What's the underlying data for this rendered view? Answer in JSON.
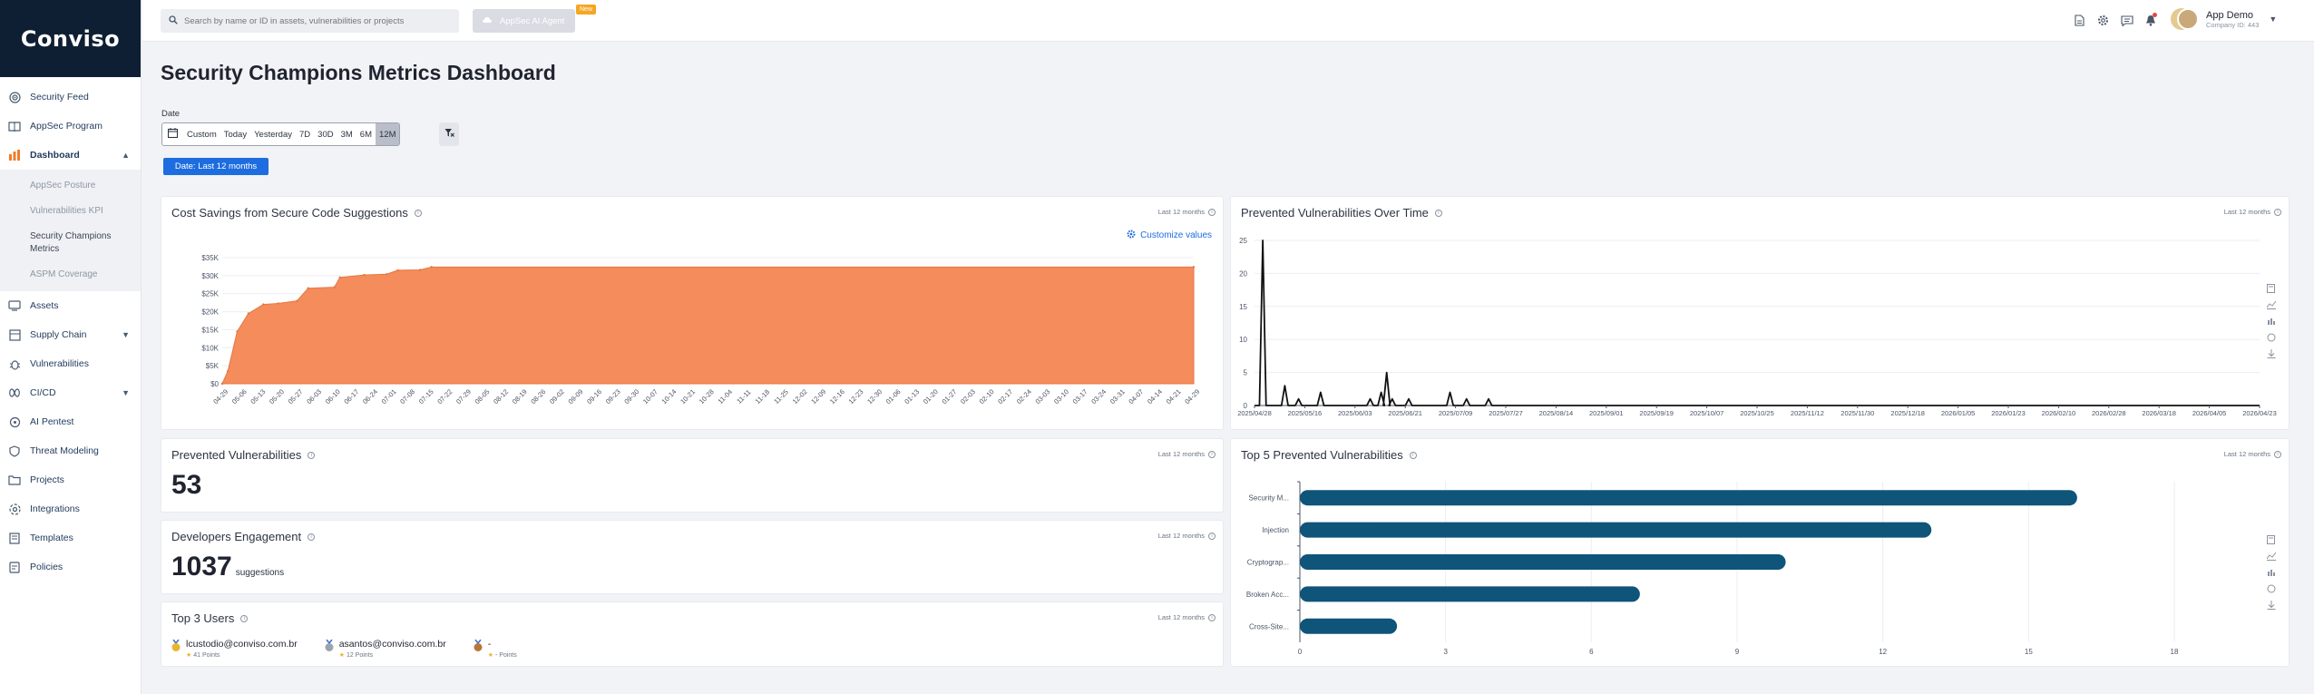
{
  "brand": {
    "logo_text": "Conviso"
  },
  "sidebar": {
    "items": [
      {
        "label": "Security Feed",
        "icon": "radar-icon"
      },
      {
        "label": "AppSec Program",
        "icon": "book-icon"
      },
      {
        "label": "Dashboard",
        "icon": "bar-chart-icon",
        "active": true,
        "expanded": true
      },
      {
        "label": "Assets",
        "icon": "assets-icon"
      },
      {
        "label": "Supply Chain",
        "icon": "supply-chain-icon",
        "expandable": true
      },
      {
        "label": "Vulnerabilities",
        "icon": "bug-icon"
      },
      {
        "label": "CI/CD",
        "icon": "cicd-icon",
        "expandable": true
      },
      {
        "label": "AI Pentest",
        "icon": "ai-icon"
      },
      {
        "label": "Threat Modeling",
        "icon": "shield-icon"
      },
      {
        "label": "Projects",
        "icon": "folder-icon"
      },
      {
        "label": "Integrations",
        "icon": "integration-icon"
      },
      {
        "label": "Templates",
        "icon": "template-icon"
      },
      {
        "label": "Policies",
        "icon": "policy-icon"
      }
    ],
    "dashboard_sub": [
      "AppSec Posture",
      "Vulnerabilities KPI",
      "Security Champions Metrics",
      "ASPM Coverage"
    ]
  },
  "topbar": {
    "search_placeholder": "Search by name or ID in assets, vulnerabilities or projects",
    "ai_label": "AppSec AI Agent",
    "new_badge": "New",
    "user_name": "App Demo",
    "company": "Company ID: 443"
  },
  "page": {
    "title": "Security Champions Metrics Dashboard",
    "date_label": "Date",
    "date_options": [
      "Custom",
      "Today",
      "Yesterday",
      "7D",
      "30D",
      "3M",
      "6M",
      "12M"
    ],
    "date_selected": "12M",
    "date_chip": "Date: Last 12 months",
    "period_label": "Last 12 months"
  },
  "cards": {
    "cost": {
      "title": "Cost Savings from Secure Code Suggestions",
      "customize": "Customize values"
    },
    "prevented_time": {
      "title": "Prevented Vulnerabilities Over Time"
    },
    "prevented": {
      "title": "Prevented Vulnerabilities",
      "value": "53"
    },
    "engagement": {
      "title": "Developers Engagement",
      "value": "1037",
      "suffix": "suggestions"
    },
    "top5": {
      "title": "Top 5 Prevented Vulnerabilities"
    },
    "top_users": {
      "title": "Top 3 Users",
      "users": [
        {
          "email": "lcustodio@conviso.com.br",
          "points": "41 Points"
        },
        {
          "email": "asantos@conviso.com.br",
          "points": "12 Points"
        },
        {
          "email": "-",
          "points": "- Points"
        }
      ]
    }
  },
  "chart_data": [
    {
      "type": "area",
      "title": "Cost Savings from Secure Code Suggestions",
      "ylim": [
        0,
        35000
      ],
      "y_ticks": [
        "$0",
        "$5K",
        "$10K",
        "$15K",
        "$20K",
        "$25K",
        "$30K",
        "$35K"
      ],
      "x_labels": [
        "04-29",
        "05-06",
        "05-13",
        "05-20",
        "05-27",
        "06-03",
        "06-10",
        "06-17",
        "06-24",
        "07-01",
        "07-08",
        "07-15",
        "07-22",
        "07-29",
        "08-05",
        "08-12",
        "08-19",
        "08-26",
        "09-02",
        "09-09",
        "09-16",
        "09-23",
        "09-30",
        "10-07",
        "10-14",
        "10-21",
        "10-28",
        "11-04",
        "11-11",
        "11-18",
        "11-25",
        "12-02",
        "12-09",
        "12-16",
        "12-23",
        "12-30",
        "01-06",
        "01-13",
        "01-20",
        "01-27",
        "02-03",
        "02-10",
        "02-17",
        "02-24",
        "03-03",
        "03-10",
        "03-17",
        "03-24",
        "03-31",
        "04-07",
        "04-14",
        "04-21",
        "04-29"
      ],
      "points": [
        [
          0,
          0
        ],
        [
          0.3,
          3500
        ],
        [
          0.8,
          14500
        ],
        [
          1.4,
          19500
        ],
        [
          2.2,
          22000
        ],
        [
          3.0,
          22300
        ],
        [
          4.0,
          23000
        ],
        [
          4.6,
          26500
        ],
        [
          6.0,
          26800
        ],
        [
          6.3,
          29500
        ],
        [
          7.6,
          30200
        ],
        [
          8.8,
          30400
        ],
        [
          9.4,
          31500
        ],
        [
          10.6,
          31600
        ],
        [
          11.2,
          32400
        ],
        [
          52,
          32400
        ]
      ],
      "color": "#f48c5c"
    },
    {
      "type": "line",
      "title": "Prevented Vulnerabilities Over Time",
      "ylim": [
        0,
        25
      ],
      "y_ticks": [
        0,
        5,
        10,
        15,
        20,
        25
      ],
      "x_labels": [
        "2025/04/28",
        "2025/05/16",
        "2025/06/03",
        "2025/06/21",
        "2025/07/09",
        "2025/07/27",
        "2025/08/14",
        "2025/09/01",
        "2025/09/19",
        "2025/10/07",
        "2025/10/25",
        "2025/11/12",
        "2025/11/30",
        "2025/12/18",
        "2026/01/05",
        "2026/01/23",
        "2026/02/10",
        "2026/02/28",
        "2026/03/18",
        "2026/04/05",
        "2026/04/23"
      ],
      "day_span": 365,
      "spikes": [
        [
          3,
          25
        ],
        [
          11,
          3
        ],
        [
          16,
          1
        ],
        [
          24,
          2
        ],
        [
          42,
          1
        ],
        [
          46,
          2
        ],
        [
          48,
          5
        ],
        [
          50,
          1
        ],
        [
          56,
          1
        ],
        [
          71,
          2
        ],
        [
          77,
          1
        ],
        [
          85,
          1
        ]
      ],
      "color": "#111111"
    },
    {
      "type": "bar",
      "orientation": "horizontal",
      "title": "Top 5 Prevented Vulnerabilities",
      "categories": [
        "Security M...",
        "Injection",
        "Cryptograp...",
        "Broken Acc...",
        "Cross-Site..."
      ],
      "values": [
        16,
        13,
        10,
        7,
        2
      ],
      "xlim": [
        0,
        18
      ],
      "x_ticks": [
        0,
        3,
        6,
        9,
        12,
        15,
        18
      ],
      "color": "#0f5479"
    }
  ]
}
